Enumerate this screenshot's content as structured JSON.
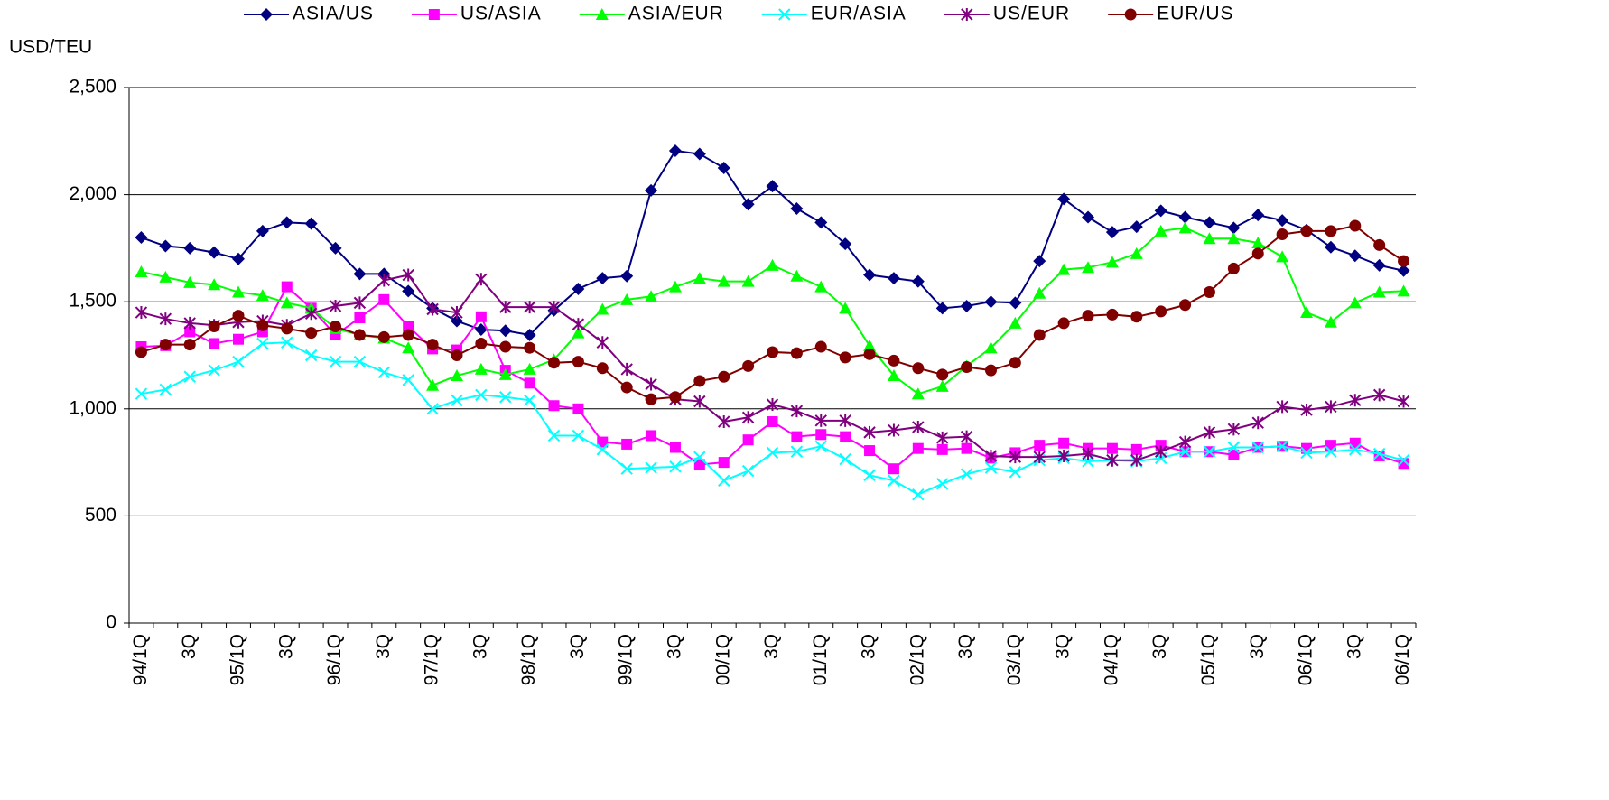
{
  "chart_data": {
    "type": "line",
    "y_label": "USD/TEU",
    "categories": [
      "94/1Q",
      null,
      "3Q",
      null,
      "95/1Q",
      null,
      "3Q",
      null,
      "96/1Q",
      null,
      "3Q",
      null,
      "97/1Q",
      null,
      "3Q",
      null,
      "98/1Q",
      null,
      "3Q",
      null,
      "99/1Q",
      null,
      "3Q",
      null,
      "00/1Q",
      null,
      "3Q",
      null,
      "01/1Q",
      null,
      "3Q",
      null,
      "02/1Q",
      null,
      "3Q",
      null,
      "03/1Q",
      null,
      "3Q",
      null,
      "04/1Q",
      null,
      "3Q",
      null,
      "05/1Q",
      null,
      "3Q",
      null,
      "06/1Q",
      null,
      "3Q",
      null,
      "06/1Q"
    ],
    "ylim": [
      0,
      2500
    ],
    "yticks": [
      0,
      500,
      {
        "value": 1000,
        "label": "1,000"
      },
      {
        "value": 1500,
        "label": "1,500"
      },
      {
        "value": 2000,
        "label": "2,000"
      },
      {
        "value": 2500,
        "label": "2,500"
      }
    ],
    "grid": true,
    "legend": "top",
    "series": [
      {
        "name": "ASIA/US",
        "color": "#000080",
        "marker": "diamond",
        "values": [
          1800,
          1760,
          1750,
          1730,
          1700,
          1830,
          1870,
          1865,
          1750,
          1630,
          1630,
          1550,
          1470,
          1410,
          1370,
          1365,
          1345,
          1460,
          1560,
          1610,
          1620,
          2020,
          2205,
          2190,
          2125,
          1955,
          2040,
          1935,
          1870,
          1770,
          1625,
          1610,
          1595,
          1470,
          1480,
          1500,
          1495,
          1690,
          1980,
          1895,
          1825,
          1850,
          1925,
          1895,
          1870,
          1845,
          1905,
          1880,
          1835,
          1755,
          1715,
          1670,
          1645
        ]
      },
      {
        "name": "US/ASIA",
        "color": "#ff00ff",
        "marker": "square",
        "values": [
          1290,
          1295,
          1360,
          1305,
          1325,
          1360,
          1570,
          1470,
          1345,
          1425,
          1510,
          1385,
          1280,
          1275,
          1430,
          1180,
          1120,
          1015,
          1000,
          845,
          835,
          875,
          820,
          740,
          750,
          855,
          940,
          870,
          880,
          870,
          805,
          720,
          815,
          810,
          815,
          770,
          795,
          830,
          840,
          815,
          815,
          810,
          830,
          800,
          800,
          785,
          820,
          825,
          815,
          830,
          840,
          780,
          745
        ]
      },
      {
        "name": "ASIA/EUR",
        "color": "#00ff00",
        "marker": "triangle",
        "values": [
          1640,
          1615,
          1590,
          1580,
          1545,
          1530,
          1495,
          1470,
          1375,
          1345,
          1330,
          1285,
          1110,
          1155,
          1185,
          1160,
          1185,
          1230,
          1355,
          1465,
          1510,
          1525,
          1570,
          1610,
          1595,
          1595,
          1670,
          1620,
          1570,
          1470,
          1295,
          1155,
          1070,
          1105,
          1200,
          1285,
          1400,
          1540,
          1650,
          1660,
          1685,
          1725,
          1830,
          1845,
          1795,
          1795,
          1775,
          1710,
          1450,
          1405,
          1495,
          1545,
          1550
        ]
      },
      {
        "name": "EUR/ASIA",
        "color": "#00ffff",
        "marker": "x",
        "values": [
          1070,
          1090,
          1150,
          1180,
          1220,
          1305,
          1310,
          1250,
          1220,
          1220,
          1170,
          1135,
          1000,
          1040,
          1065,
          1055,
          1040,
          875,
          875,
          810,
          720,
          725,
          730,
          775,
          665,
          710,
          795,
          800,
          825,
          765,
          690,
          665,
          600,
          650,
          695,
          725,
          705,
          760,
          770,
          755,
          760,
          755,
          770,
          800,
          800,
          820,
          820,
          825,
          795,
          800,
          810,
          790,
          760
        ]
      },
      {
        "name": "US/EUR",
        "color": "#800080",
        "marker": "star",
        "values": [
          1450,
          1420,
          1400,
          1390,
          1405,
          1410,
          1390,
          1445,
          1480,
          1495,
          1600,
          1625,
          1465,
          1450,
          1605,
          1475,
          1475,
          1475,
          1395,
          1310,
          1185,
          1115,
          1045,
          1035,
          940,
          960,
          1020,
          990,
          945,
          945,
          890,
          900,
          915,
          865,
          870,
          780,
          775,
          775,
          780,
          790,
          760,
          760,
          800,
          845,
          890,
          905,
          935,
          1010,
          995,
          1010,
          1040,
          1065,
          1035
        ]
      },
      {
        "name": "EUR/US",
        "color": "#800000",
        "marker": "circle",
        "values": [
          1265,
          1300,
          1300,
          1385,
          1435,
          1390,
          1375,
          1355,
          1385,
          1345,
          1335,
          1345,
          1300,
          1250,
          1305,
          1290,
          1285,
          1215,
          1220,
          1190,
          1100,
          1045,
          1055,
          1130,
          1150,
          1200,
          1265,
          1260,
          1290,
          1240,
          1255,
          1225,
          1190,
          1160,
          1195,
          1180,
          1215,
          1345,
          1400,
          1435,
          1440,
          1430,
          1455,
          1485,
          1545,
          1655,
          1725,
          1815,
          1830,
          1830,
          1855,
          1765,
          1690
        ]
      }
    ]
  }
}
